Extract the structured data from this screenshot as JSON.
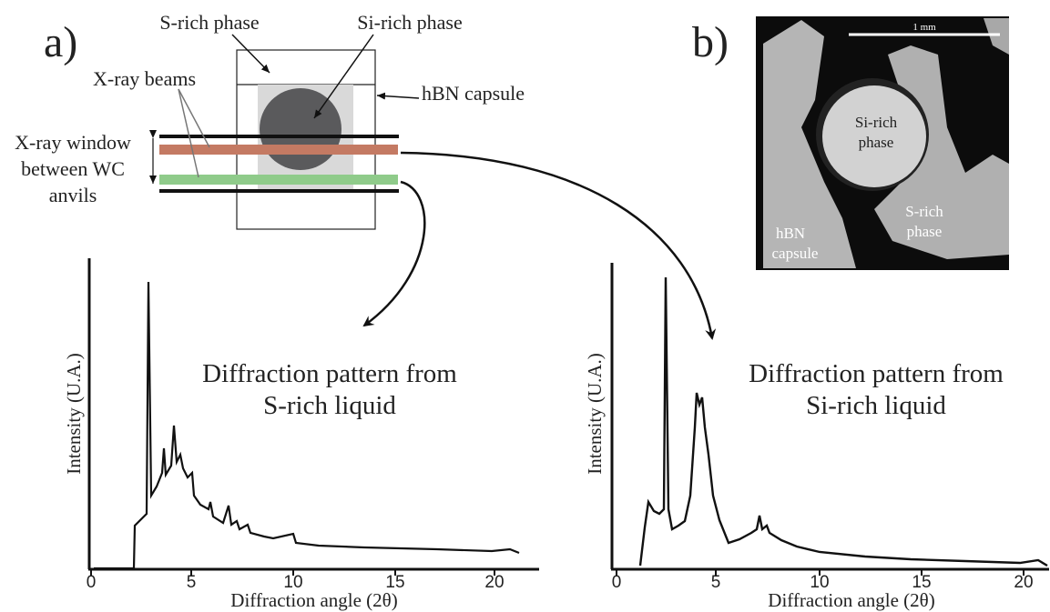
{
  "panel_a": {
    "label": "a)",
    "diagram": {
      "s_rich": "S-rich phase",
      "si_rich": "Si-rich phase",
      "beams": "X-ray beams",
      "capsule": "hBN capsule",
      "window": [
        "X-ray window",
        "between WC",
        "anvils"
      ]
    }
  },
  "panel_b": {
    "label": "b)",
    "scale": "1 mm",
    "si_rich": [
      "Si-rich",
      "phase"
    ],
    "s_rich": [
      "S-rich",
      "phase"
    ],
    "capsule": [
      "hBN",
      "capsule"
    ]
  },
  "plots": [
    {
      "caption": [
        "Diffraction pattern from",
        "S-rich liquid"
      ],
      "xlabel": "Diffraction angle (2θ)",
      "ylabel": "Intensity (U.A.)",
      "xticks": [
        "0",
        "5",
        "10",
        "15",
        "20"
      ]
    },
    {
      "caption": [
        "Diffraction pattern from",
        "Si-rich liquid"
      ],
      "xlabel": "Diffraction angle (2θ)",
      "ylabel": "Intensity (U.A.)",
      "xticks": [
        "0",
        "5",
        "10",
        "15",
        "20"
      ]
    }
  ]
}
